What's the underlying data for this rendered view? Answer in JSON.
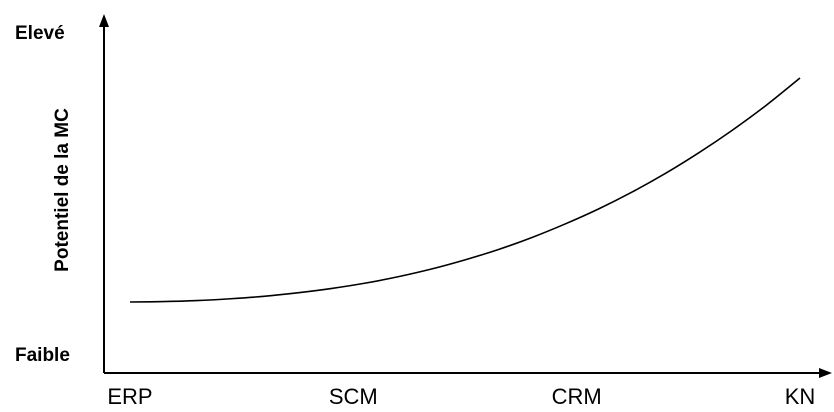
{
  "chart_data": {
    "type": "line",
    "title": "",
    "xlabel": "",
    "ylabel": "Potentiel de la MC",
    "y_high_label": "Elevé",
    "y_low_label": "Faible",
    "categories": [
      "ERP",
      "SCM",
      "CRM",
      "KN"
    ],
    "x": [
      0,
      0.15,
      0.3,
      0.45,
      0.6,
      0.75,
      0.9,
      1.05,
      1.2,
      1.35,
      1.5,
      1.65,
      1.8,
      1.95,
      2.1,
      2.25,
      2.4,
      2.55,
      2.7,
      2.85,
      3.0
    ],
    "series": [
      {
        "values": [
          0,
          0.002,
          0.007,
          0.016,
          0.028,
          0.045,
          0.066,
          0.092,
          0.124,
          0.162,
          0.207,
          0.258,
          0.317,
          0.384,
          0.458,
          0.541,
          0.633,
          0.735,
          0.846,
          0.967,
          1.1
        ],
        "color": "#000000"
      }
    ],
    "xlim": [
      0,
      3
    ],
    "ylim": [
      -0.2,
      1.35
    ],
    "grid": false,
    "legend": "none"
  }
}
